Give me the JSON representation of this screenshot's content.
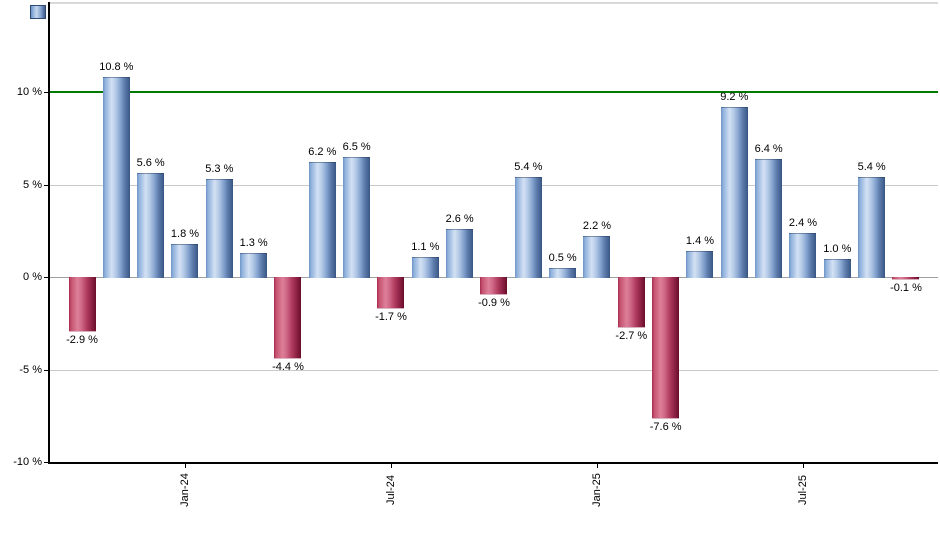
{
  "chart_data": {
    "type": "bar",
    "title": "",
    "xlabel": "",
    "ylabel": "",
    "unit": "%",
    "values": [
      -2.9,
      10.8,
      5.6,
      1.8,
      5.3,
      1.3,
      -4.4,
      6.2,
      6.5,
      -1.7,
      1.1,
      2.6,
      -0.9,
      5.4,
      0.5,
      2.2,
      -2.7,
      -7.6,
      1.4,
      9.2,
      6.4,
      2.4,
      1.0,
      5.4,
      -0.1
    ],
    "bar_labels": [
      "-2.9 %",
      "10.8 %",
      "5.6 %",
      "1.8 %",
      "5.3 %",
      "1.3 %",
      "-4.4 %",
      "6.2 %",
      "6.5 %",
      "-1.7 %",
      "1.1 %",
      "2.6 %",
      "-0.9 %",
      "5.4 %",
      "0.5 %",
      "2.2 %",
      "-2.7 %",
      "-7.6 %",
      "1.4 %",
      "9.2 %",
      "6.4 %",
      "2.4 %",
      "1.0 %",
      "5.4 %",
      "-0.1 %"
    ],
    "x_ticks": [
      {
        "bar_index": 3,
        "label": "Jan-24"
      },
      {
        "bar_index": 9,
        "label": "Jul-24"
      },
      {
        "bar_index": 15,
        "label": "Jan-25"
      },
      {
        "bar_index": 21,
        "label": "Jul-25"
      }
    ],
    "y_ticks": [
      {
        "value": 10,
        "label": "10 %"
      },
      {
        "value": 5,
        "label": "5 %"
      },
      {
        "value": 0,
        "label": "0 %"
      },
      {
        "value": -5,
        "label": "-5 %"
      },
      {
        "value": -10,
        "label": "-10 %"
      }
    ],
    "ylim": [
      -10,
      14.9
    ],
    "grid": true,
    "legend_position": "top-left",
    "threshold_line": {
      "value": 10,
      "color": "#007b00"
    },
    "colors": {
      "positive_bar_edge": "#3f5e8c",
      "positive_bar_light": "#d3e1f3",
      "negative_bar_edge": "#73112e",
      "negative_bar_light": "#de8099",
      "legend_swatch": "#5b87c5",
      "gridline": "#c8c8c8",
      "zero_line": "#a0a0a0",
      "axis": "#000000",
      "top_border": "#d9d9d9"
    }
  }
}
